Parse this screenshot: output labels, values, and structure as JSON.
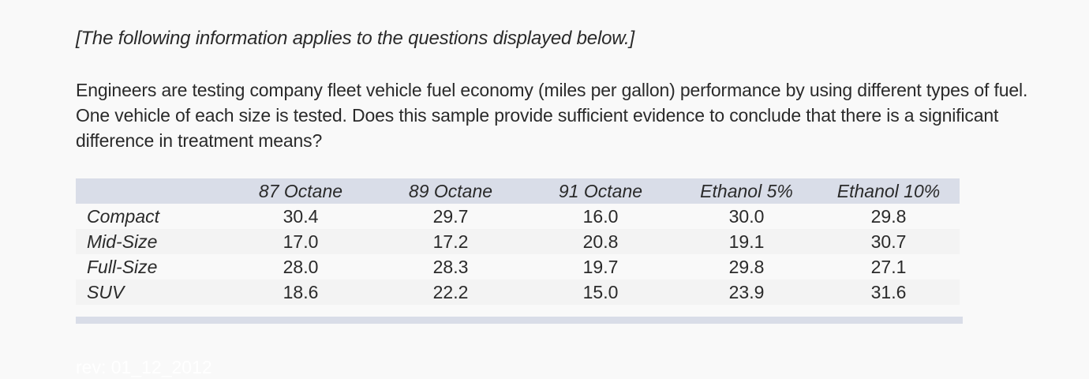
{
  "intro": "[The following information applies to the questions displayed below.]",
  "question": "Engineers are testing company fleet vehicle fuel economy (miles per gallon) performance by using different types of fuel. One vehicle of each size is tested. Does this sample provide sufficient evidence to conclude that there is a significant difference in treatment means?",
  "table": {
    "corner": "",
    "columns": [
      "87 Octane",
      "89 Octane",
      "91 Octane",
      "Ethanol 5%",
      "Ethanol 10%"
    ],
    "rows": [
      {
        "label": "Compact",
        "values": [
          "30.4",
          "29.7",
          "16.0",
          "30.0",
          "29.8"
        ]
      },
      {
        "label": "Mid-Size",
        "values": [
          "17.0",
          "17.2",
          "20.8",
          "19.1",
          "30.7"
        ]
      },
      {
        "label": "Full-Size",
        "values": [
          "28.0",
          "28.3",
          "19.7",
          "29.8",
          "27.1"
        ]
      },
      {
        "label": "SUV",
        "values": [
          "18.6",
          "22.2",
          "15.0",
          "23.9",
          "31.6"
        ]
      }
    ]
  },
  "footer": {
    "revision": "rev: 01_12_2012"
  },
  "colors": {
    "page_background": "#f9f9f9",
    "header_band": "#d9dde8",
    "alt_row": "#f3f3f3",
    "text": "#2a2a2a"
  }
}
